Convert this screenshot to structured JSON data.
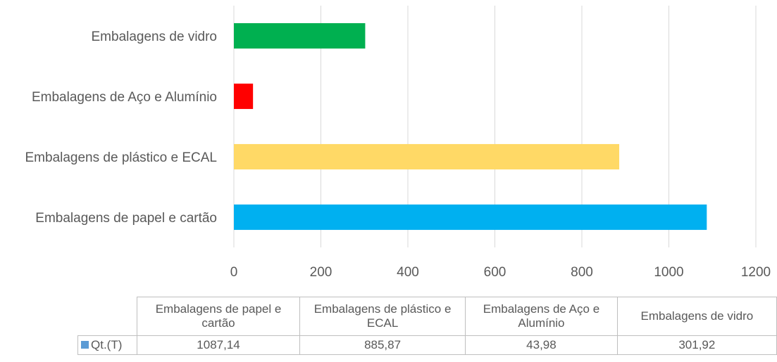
{
  "chart_data": {
    "type": "bar",
    "orientation": "horizontal",
    "categories": [
      "Embalagens de papel e cartão",
      "Embalagens de plástico e ECAL",
      "Embalagens de Aço e Alumínio",
      "Embalagens de vidro"
    ],
    "series": [
      {
        "name": "Qt.(T)",
        "values": [
          1087.14,
          885.87,
          43.98,
          301.92
        ],
        "display_values": [
          "1087,14",
          "885,87",
          "43,98",
          "301,92"
        ]
      }
    ],
    "bar_colors": [
      "#00b0f0",
      "#ffd966",
      "#ff0000",
      "#00b050"
    ],
    "legend_color": "#5b9bd5",
    "xlim": [
      0,
      1200
    ],
    "x_ticks": [
      "0",
      "200",
      "400",
      "600",
      "800",
      "1000",
      "1200"
    ],
    "grid": true,
    "title": "",
    "xlabel": "",
    "ylabel": "",
    "data_table": {
      "headers": [
        "Embalagens de papel e cartão",
        "Embalagens de plástico e ECAL",
        "Embalagens de Aço e Alumínio",
        "Embalagens de vidro"
      ]
    }
  }
}
